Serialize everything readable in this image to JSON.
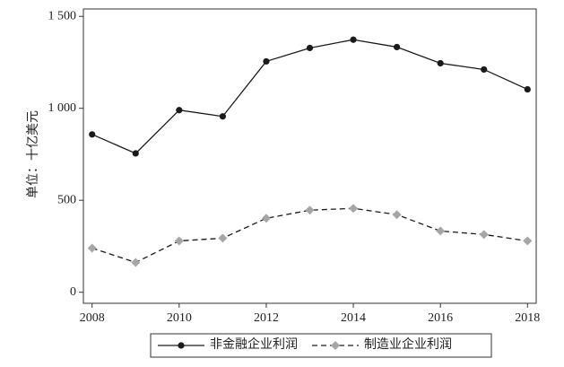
{
  "chart_data": {
    "type": "line",
    "y_label": "单位：十亿美元",
    "x": [
      2008,
      2009,
      2010,
      2011,
      2012,
      2013,
      2014,
      2015,
      2016,
      2017,
      2018
    ],
    "series": [
      {
        "name": "非金融企业利润",
        "color": "#1a1a1a",
        "line_color": "#1a1a1a",
        "dash": "none",
        "marker": "circle",
        "values": [
          858,
          755,
          990,
          956,
          1255,
          1328,
          1373,
          1333,
          1245,
          1211,
          1103
        ]
      },
      {
        "name": "制造业企业利润",
        "color": "#a6a6a6",
        "line_color": "#1a1a1a",
        "dash": "6,4",
        "marker": "diamond",
        "values": [
          240,
          162,
          279,
          294,
          402,
          446,
          456,
          422,
          333,
          314,
          279
        ]
      }
    ],
    "xlim": [
      2007.8,
      2018.2
    ],
    "xticks": [
      2008,
      2010,
      2012,
      2014,
      2016,
      2018
    ],
    "ylim": [
      -60,
      1540
    ],
    "yticks": [
      0,
      500,
      {
        "value": 1000,
        "label": "1 000"
      },
      {
        "value": 1500,
        "label": "1 500"
      }
    ],
    "legend": "bottom"
  }
}
